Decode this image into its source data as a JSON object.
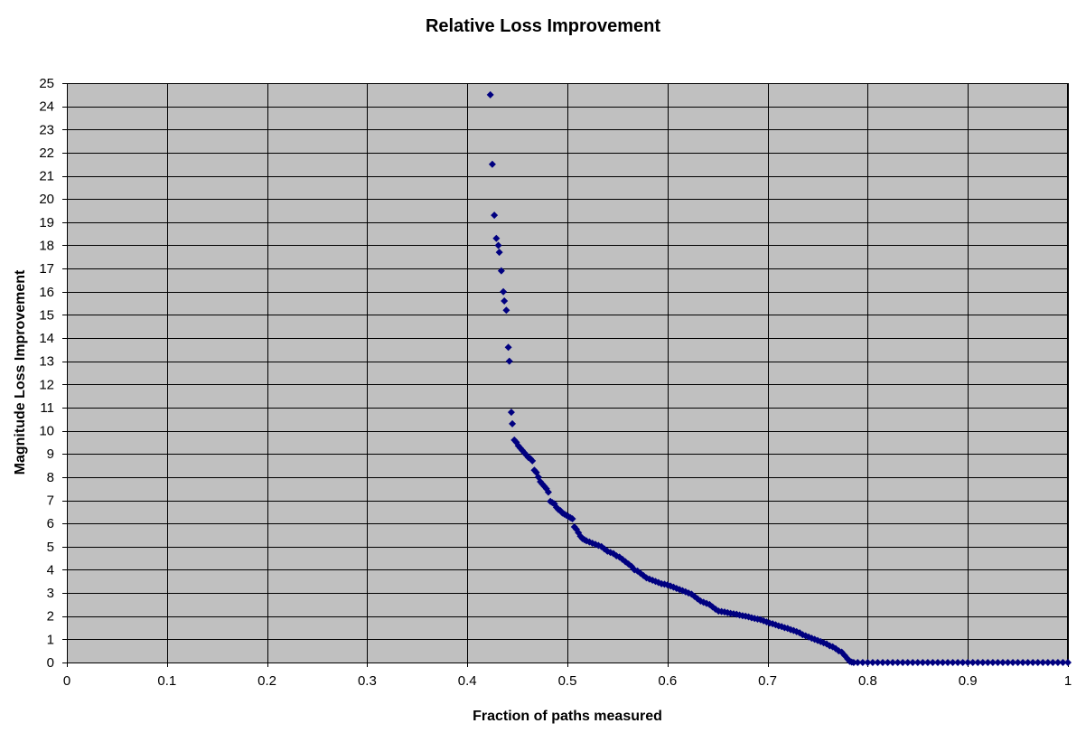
{
  "chart_data": {
    "type": "scatter",
    "title": "Relative Loss Improvement",
    "xlabel": "Fraction of paths measured",
    "ylabel": "Magnitude Loss Improvement",
    "xlim": [
      0,
      1
    ],
    "ylim": [
      0,
      25
    ],
    "xticks": [
      "0",
      "0.1",
      "0.2",
      "0.3",
      "0.4",
      "0.5",
      "0.6",
      "0.7",
      "0.8",
      "0.9",
      "1"
    ],
    "yticks": [
      "0",
      "1",
      "2",
      "3",
      "4",
      "5",
      "6",
      "7",
      "8",
      "9",
      "10",
      "11",
      "12",
      "13",
      "14",
      "15",
      "16",
      "17",
      "18",
      "19",
      "20",
      "21",
      "22",
      "23",
      "24",
      "25"
    ],
    "grid": true,
    "legend": "none",
    "plot_background": "#c0c0c0",
    "marker_color": "#000080",
    "marker": "diamond",
    "series": [
      {
        "x": [
          0.423,
          0.425,
          0.427,
          0.429,
          0.431,
          0.432,
          0.434,
          0.436,
          0.437,
          0.439,
          0.441,
          0.442,
          0.444,
          0.445,
          0.447,
          0.449,
          0.451,
          0.453,
          0.455,
          0.457,
          0.459,
          0.461,
          0.463,
          0.465,
          0.467,
          0.469,
          0.471,
          0.473,
          0.475,
          0.477,
          0.479,
          0.481,
          0.483,
          0.485,
          0.487,
          0.489,
          0.491,
          0.493,
          0.495,
          0.497,
          0.499,
          0.501,
          0.503,
          0.505,
          0.507,
          0.509,
          0.511,
          0.513,
          0.515,
          0.517,
          0.519,
          0.522,
          0.525,
          0.528,
          0.531,
          0.534,
          0.537,
          0.54,
          0.543,
          0.546,
          0.549,
          0.552,
          0.555,
          0.558,
          0.561,
          0.564,
          0.567,
          0.57,
          0.573,
          0.576,
          0.579,
          0.582,
          0.585,
          0.588,
          0.591,
          0.594,
          0.597,
          0.6,
          0.603,
          0.606,
          0.609,
          0.612,
          0.615,
          0.618,
          0.621,
          0.624,
          0.627,
          0.63,
          0.633,
          0.636,
          0.639,
          0.642,
          0.645,
          0.648,
          0.651,
          0.654,
          0.657,
          0.66,
          0.663,
          0.666,
          0.669,
          0.672,
          0.675,
          0.678,
          0.681,
          0.684,
          0.687,
          0.69,
          0.693,
          0.696,
          0.699,
          0.702,
          0.705,
          0.708,
          0.711,
          0.714,
          0.717,
          0.72,
          0.723,
          0.726,
          0.729,
          0.732,
          0.735,
          0.738,
          0.741,
          0.744,
          0.747,
          0.75,
          0.753,
          0.756,
          0.759,
          0.762,
          0.765,
          0.768,
          0.771,
          0.774,
          0.777,
          0.78,
          0.782,
          0.784,
          0.786,
          0.79,
          0.795,
          0.8,
          0.805,
          0.81,
          0.815,
          0.82,
          0.825,
          0.83,
          0.835,
          0.84,
          0.845,
          0.85,
          0.855,
          0.86,
          0.865,
          0.87,
          0.875,
          0.88,
          0.885,
          0.89,
          0.895,
          0.9,
          0.905,
          0.91,
          0.915,
          0.92,
          0.925,
          0.93,
          0.935,
          0.94,
          0.945,
          0.95,
          0.955,
          0.96,
          0.965,
          0.97,
          0.975,
          0.98,
          0.985,
          0.99,
          0.995,
          1.0
        ],
        "y": [
          24.5,
          21.5,
          19.3,
          18.3,
          18.0,
          17.7,
          16.9,
          16.0,
          15.6,
          15.2,
          13.6,
          13.0,
          10.8,
          10.3,
          9.6,
          9.5,
          9.35,
          9.25,
          9.15,
          9.05,
          8.95,
          8.85,
          8.8,
          8.7,
          8.3,
          8.2,
          8.0,
          7.8,
          7.7,
          7.6,
          7.5,
          7.35,
          6.95,
          6.9,
          6.85,
          6.7,
          6.6,
          6.55,
          6.45,
          6.4,
          6.35,
          6.3,
          6.25,
          6.2,
          5.85,
          5.75,
          5.6,
          5.45,
          5.35,
          5.3,
          5.25,
          5.2,
          5.15,
          5.1,
          5.05,
          5.0,
          4.9,
          4.8,
          4.75,
          4.7,
          4.6,
          4.55,
          4.45,
          4.35,
          4.25,
          4.15,
          4.0,
          3.95,
          3.85,
          3.75,
          3.65,
          3.6,
          3.55,
          3.5,
          3.45,
          3.4,
          3.38,
          3.35,
          3.3,
          3.25,
          3.2,
          3.15,
          3.1,
          3.05,
          3.0,
          2.95,
          2.85,
          2.75,
          2.65,
          2.6,
          2.55,
          2.5,
          2.4,
          2.3,
          2.22,
          2.2,
          2.18,
          2.15,
          2.12,
          2.1,
          2.08,
          2.05,
          2.02,
          2.0,
          1.97,
          1.93,
          1.9,
          1.87,
          1.85,
          1.8,
          1.75,
          1.7,
          1.67,
          1.63,
          1.58,
          1.55,
          1.5,
          1.47,
          1.42,
          1.38,
          1.33,
          1.28,
          1.2,
          1.15,
          1.1,
          1.05,
          1.0,
          0.95,
          0.9,
          0.85,
          0.8,
          0.72,
          0.68,
          0.6,
          0.5,
          0.45,
          0.3,
          0.15,
          0.05,
          0.02,
          0.0,
          0.0,
          0.0,
          0.0,
          0.0,
          0.0,
          0.0,
          0.0,
          0.0,
          0.0,
          0.0,
          0.0,
          0.0,
          0.0,
          0.0,
          0.0,
          0.0,
          0.0,
          0.0,
          0.0,
          0.0,
          0.0,
          0.0,
          0.0,
          0.0,
          0.0,
          0.0,
          0.0,
          0.0,
          0.0,
          0.0,
          0.0,
          0.0,
          0.0,
          0.0,
          0.0,
          0.0,
          0.0,
          0.0,
          0.0,
          0.0,
          0.0,
          0.0,
          0.0
        ]
      }
    ]
  }
}
